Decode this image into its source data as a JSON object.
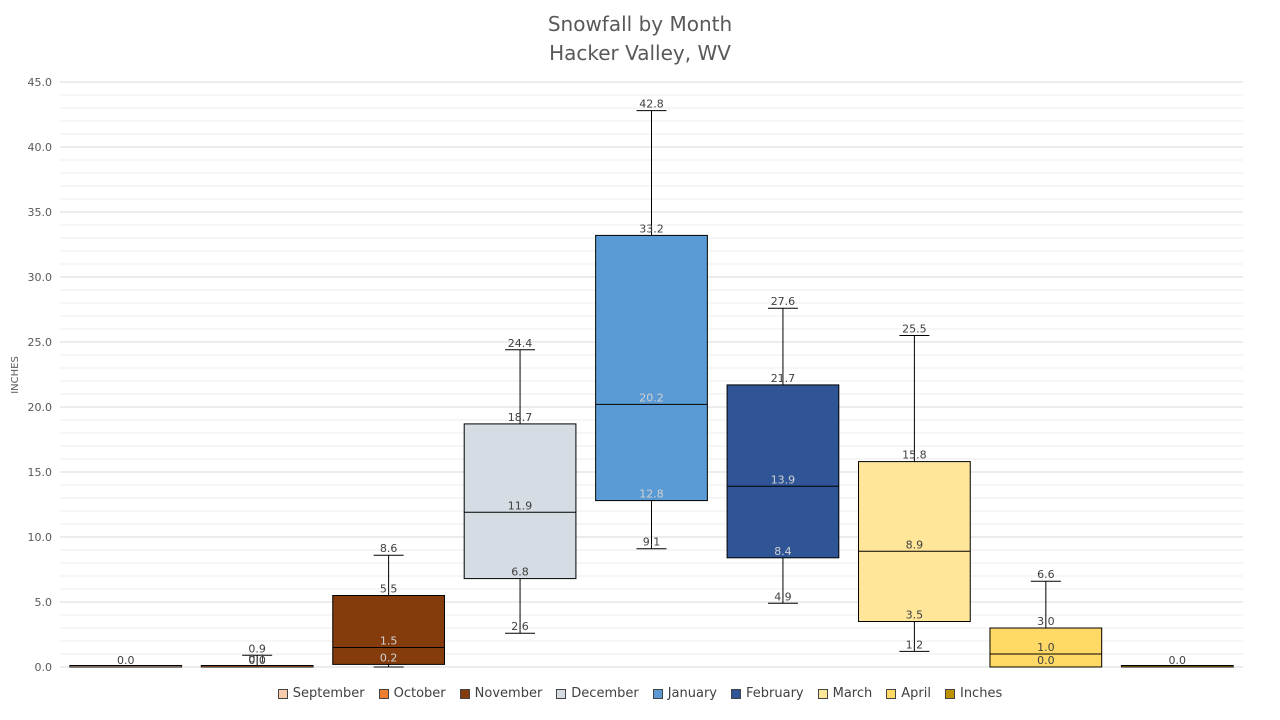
{
  "chart_data": {
    "type": "box",
    "title": "Snowfall by Month",
    "subtitle": "Hacker Valley, WV",
    "ylabel": "INCHES",
    "xlabel": "",
    "ylim": [
      0,
      45
    ],
    "yticks": [
      "0.0",
      "5.0",
      "10.0",
      "15.0",
      "20.0",
      "25.0",
      "30.0",
      "35.0",
      "40.0",
      "45.0"
    ],
    "grid": true,
    "legend_position": "bottom",
    "series": [
      {
        "name": "September",
        "color": "#F8CBAD",
        "min": 0.0,
        "q1": 0.0,
        "median": 0.0,
        "q3": 0.0,
        "max": 0.0,
        "labels": [
          "0.0"
        ]
      },
      {
        "name": "October",
        "color": "#ED7D31",
        "min": 0.0,
        "q1": 0.0,
        "median": 0.0,
        "q3": 0.1,
        "max": 0.9,
        "labels": [
          "0.9",
          "0.1",
          "0.0"
        ]
      },
      {
        "name": "November",
        "color": "#843C0C",
        "min": 0.0,
        "q1": 0.2,
        "median": 1.5,
        "q3": 5.5,
        "max": 8.6,
        "labels": [
          "8.6",
          "5.5",
          "1.5",
          "0.2"
        ]
      },
      {
        "name": "December",
        "color": "#D6DCE4",
        "min": 2.6,
        "q1": 6.8,
        "median": 11.9,
        "q3": 18.7,
        "max": 24.4,
        "labels": [
          "24.4",
          "18.7",
          "11.9",
          "6.8",
          "2.6"
        ]
      },
      {
        "name": "January",
        "color": "#5B9BD5",
        "min": 9.1,
        "q1": 12.8,
        "median": 20.2,
        "q3": 33.2,
        "max": 42.8,
        "labels": [
          "42.8",
          "33.2",
          "20.2",
          "12.8",
          "9.1"
        ]
      },
      {
        "name": "February",
        "color": "#2F5597",
        "min": 4.9,
        "q1": 8.4,
        "median": 13.9,
        "q3": 21.7,
        "max": 27.6,
        "labels": [
          "27.6",
          "21.7",
          "13.9",
          "8.4",
          "4.9"
        ]
      },
      {
        "name": "March",
        "color": "#FFE699",
        "min": 1.2,
        "q1": 3.5,
        "median": 8.9,
        "q3": 15.8,
        "max": 25.5,
        "labels": [
          "25.5",
          "15.8",
          "8.9",
          "3.5",
          "1.2"
        ]
      },
      {
        "name": "April",
        "color": "#FFD966",
        "min": 0.0,
        "q1": 0.0,
        "median": 1.0,
        "q3": 3.0,
        "max": 6.6,
        "labels": [
          "6.6",
          "3.0",
          "1.0",
          "0.0"
        ]
      },
      {
        "name": "Inches",
        "color": "#BF9000",
        "min": 0.0,
        "q1": 0.0,
        "median": 0.0,
        "q3": 0.0,
        "max": 0.0,
        "labels": [
          "0.0"
        ]
      }
    ]
  }
}
